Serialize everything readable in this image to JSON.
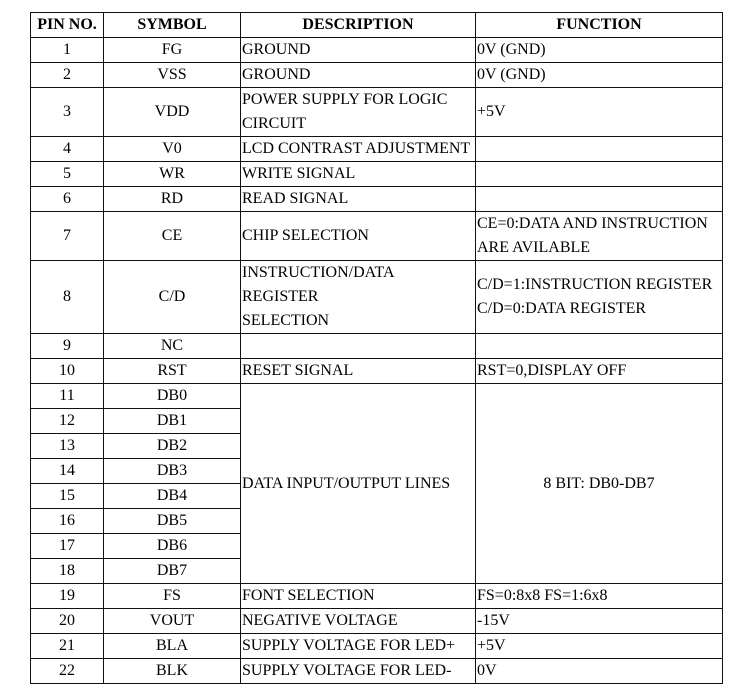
{
  "headers": [
    "PIN NO.",
    "SYMBOL",
    "DESCRIPTION",
    "FUNCTION"
  ],
  "rows": [
    {
      "pin": "1",
      "symbol": "FG",
      "description": "GROUND",
      "function": "0V (GND)"
    },
    {
      "pin": "2",
      "symbol": "VSS",
      "description": "GROUND",
      "function": "0V (GND)"
    },
    {
      "pin": "3",
      "symbol": "VDD",
      "description": " POWER SUPPLY FOR LOGIC\nCIRCUIT",
      "function": "+5V",
      "tall": true
    },
    {
      "pin": "4",
      "symbol": "V0",
      "description": "LCD CONTRAST ADJUSTMENT",
      "function": ""
    },
    {
      "pin": "5",
      "symbol": "WR",
      "description": "WRITE SIGNAL",
      "function": ""
    },
    {
      "pin": "6",
      "symbol": "RD",
      "description": "READ SIGNAL",
      "function": ""
    },
    {
      "pin": "7",
      "symbol": "CE",
      "description": "CHIP SELECTION",
      "function": "CE=0:DATA AND INSTRUCTION\nARE AVILABLE",
      "tall": true
    },
    {
      "pin": "8",
      "symbol": "C/D",
      "description": "INSTRUCTION/DATA REGISTER\nSELECTION",
      "function": "C/D=1:INSTRUCTION REGISTER\nC/D=0:DATA REGISTER",
      "tall": true
    },
    {
      "pin": "9",
      "symbol": "NC",
      "description": "",
      "function": ""
    },
    {
      "pin": "10",
      "symbol": "RST",
      "description": "RESET SIGNAL",
      "function": "RST=0,DISPLAY OFF"
    },
    {
      "pin": "11",
      "symbol": "DB0",
      "description": "DATA INPUT/OUTPUT LINES",
      "function": "8 BIT: DB0-DB7",
      "span": 8
    },
    {
      "pin": "12",
      "symbol": "DB1"
    },
    {
      "pin": "13",
      "symbol": "DB2"
    },
    {
      "pin": "14",
      "symbol": "DB3"
    },
    {
      "pin": "15",
      "symbol": "DB4"
    },
    {
      "pin": "16",
      "symbol": "DB5"
    },
    {
      "pin": "17",
      "symbol": "DB6"
    },
    {
      "pin": "18",
      "symbol": "DB7"
    },
    {
      "pin": "19",
      "symbol": "FS",
      "description": "FONT SELECTION",
      "function": "FS=0:8x8  FS=1:6x8"
    },
    {
      "pin": "20",
      "symbol": "VOUT",
      "description": "NEGATIVE VOLTAGE",
      "function": "-15V"
    },
    {
      "pin": "21",
      "symbol": "BLA",
      "description": "SUPPLY VOLTAGE FOR LED+",
      "function": "+5V"
    },
    {
      "pin": "22",
      "symbol": "BLK",
      "description": "SUPPLY VOLTAGE FOR LED-",
      "function": "0V"
    }
  ]
}
